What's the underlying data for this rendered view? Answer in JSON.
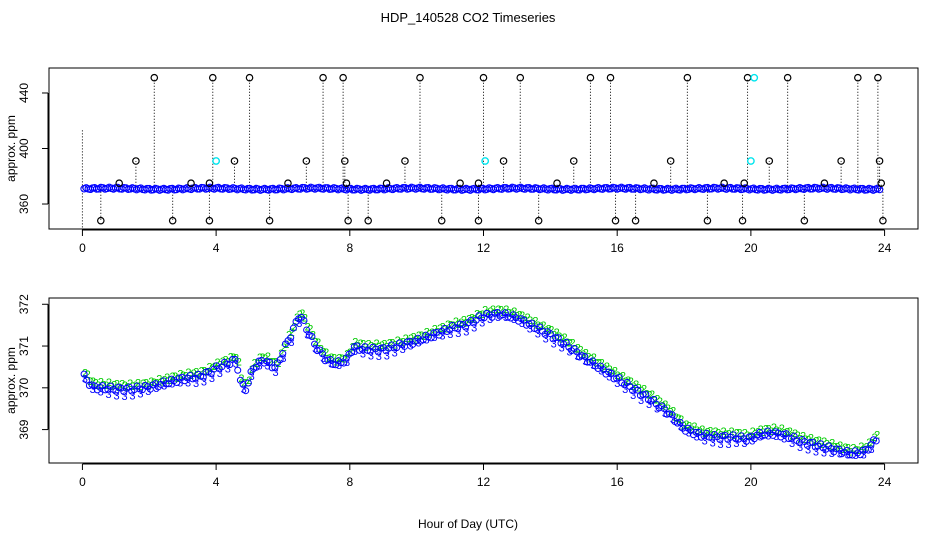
{
  "title": "HDP_140528  CO2 Timeseries",
  "xlabel": "Hour of Day (UTC)",
  "colors": {
    "background": "#ffffff",
    "axis": "#000000",
    "series_mean": "#0000ff",
    "series_outlier": "#000000",
    "series_flag": "#00e5ee",
    "series_2": "#00cc00",
    "series_3": "#0000ff"
  },
  "chart_data": [
    {
      "type": "scatter",
      "name": "top-panel",
      "ylabel": "approx. ppm",
      "xlim": [
        -1,
        25
      ],
      "ylim": [
        342,
        458
      ],
      "xticks": [
        0,
        4,
        8,
        12,
        16,
        20,
        24
      ],
      "xtick_labels": [
        "0",
        "4",
        "8",
        "12",
        "16",
        "20",
        "24"
      ],
      "yticks": [
        360,
        400,
        440
      ],
      "ytick_labels": [
        "360",
        "400",
        "440"
      ],
      "baseline_start": 0.05,
      "baseline_end": 23.85,
      "baseline_value": 371,
      "high_points": [
        {
          "x": 2.15,
          "y": 451
        },
        {
          "x": 3.9,
          "y": 451
        },
        {
          "x": 5.0,
          "y": 451
        },
        {
          "x": 7.2,
          "y": 451
        },
        {
          "x": 7.8,
          "y": 451
        },
        {
          "x": 10.1,
          "y": 451
        },
        {
          "x": 12.0,
          "y": 451
        },
        {
          "x": 13.1,
          "y": 451
        },
        {
          "x": 15.2,
          "y": 451
        },
        {
          "x": 15.8,
          "y": 451
        },
        {
          "x": 18.1,
          "y": 451
        },
        {
          "x": 19.9,
          "y": 451
        },
        {
          "x": 21.1,
          "y": 451
        },
        {
          "x": 23.2,
          "y": 451
        },
        {
          "x": 23.8,
          "y": 451
        }
      ],
      "mid_points": [
        {
          "x": 1.6,
          "y": 391
        },
        {
          "x": 4.55,
          "y": 391
        },
        {
          "x": 6.7,
          "y": 391
        },
        {
          "x": 7.85,
          "y": 391
        },
        {
          "x": 9.65,
          "y": 391
        },
        {
          "x": 12.6,
          "y": 391
        },
        {
          "x": 14.7,
          "y": 391
        },
        {
          "x": 17.6,
          "y": 391
        },
        {
          "x": 20.55,
          "y": 391
        },
        {
          "x": 22.7,
          "y": 391
        },
        {
          "x": 23.85,
          "y": 391
        }
      ],
      "near_points": [
        {
          "x": 1.1,
          "y": 375
        },
        {
          "x": 3.25,
          "y": 375
        },
        {
          "x": 3.8,
          "y": 375
        },
        {
          "x": 6.15,
          "y": 375
        },
        {
          "x": 7.9,
          "y": 375
        },
        {
          "x": 9.1,
          "y": 375
        },
        {
          "x": 11.3,
          "y": 375
        },
        {
          "x": 11.85,
          "y": 375
        },
        {
          "x": 14.2,
          "y": 375
        },
        {
          "x": 17.1,
          "y": 375
        },
        {
          "x": 19.2,
          "y": 375
        },
        {
          "x": 19.8,
          "y": 375
        },
        {
          "x": 22.2,
          "y": 375
        },
        {
          "x": 23.9,
          "y": 375
        }
      ],
      "low_points": [
        {
          "x": 0.55,
          "y": 348
        },
        {
          "x": 2.7,
          "y": 348
        },
        {
          "x": 3.8,
          "y": 348
        },
        {
          "x": 5.6,
          "y": 348
        },
        {
          "x": 7.95,
          "y": 348
        },
        {
          "x": 8.55,
          "y": 348
        },
        {
          "x": 10.75,
          "y": 348
        },
        {
          "x": 11.85,
          "y": 348
        },
        {
          "x": 13.65,
          "y": 348
        },
        {
          "x": 15.95,
          "y": 348
        },
        {
          "x": 16.55,
          "y": 348
        },
        {
          "x": 18.7,
          "y": 348
        },
        {
          "x": 19.75,
          "y": 348
        },
        {
          "x": 21.6,
          "y": 348
        },
        {
          "x": 23.95,
          "y": 348
        }
      ],
      "flag_points": [
        {
          "x": 4.0,
          "y": 391
        },
        {
          "x": 12.05,
          "y": 391
        },
        {
          "x": 20.0,
          "y": 391
        },
        {
          "x": 20.1,
          "y": 451
        }
      ],
      "dotted_lines": [
        {
          "x": 0.0,
          "y_from": 341,
          "y_to": 414
        }
      ]
    },
    {
      "type": "scatter",
      "name": "bottom-panel",
      "ylabel": "approx. ppm",
      "xlim": [
        -1,
        25
      ],
      "ylim": [
        368.2,
        372.15
      ],
      "xticks": [
        0,
        4,
        8,
        12,
        16,
        20,
        24
      ],
      "xtick_labels": [
        "0",
        "4",
        "8",
        "12",
        "16",
        "20",
        "24"
      ],
      "yticks": [
        369,
        370,
        371,
        372
      ],
      "ytick_labels": [
        "369",
        "370",
        "371",
        "372"
      ],
      "series": [
        {
          "name": "2",
          "marker": "2"
        },
        {
          "name": "3",
          "marker": "3"
        }
      ],
      "profile": [
        {
          "x": 0.05,
          "y": 370.3
        },
        {
          "x": 0.3,
          "y": 370.05
        },
        {
          "x": 1.0,
          "y": 370.0
        },
        {
          "x": 1.5,
          "y": 370.0
        },
        {
          "x": 2.0,
          "y": 370.05
        },
        {
          "x": 2.5,
          "y": 370.15
        },
        {
          "x": 3.0,
          "y": 370.25
        },
        {
          "x": 3.5,
          "y": 370.3
        },
        {
          "x": 3.8,
          "y": 370.4
        },
        {
          "x": 4.0,
          "y": 370.5
        },
        {
          "x": 4.3,
          "y": 370.6
        },
        {
          "x": 4.6,
          "y": 370.7
        },
        {
          "x": 4.75,
          "y": 370.1
        },
        {
          "x": 4.9,
          "y": 370.0
        },
        {
          "x": 5.1,
          "y": 370.5
        },
        {
          "x": 5.4,
          "y": 370.7
        },
        {
          "x": 5.8,
          "y": 370.5
        },
        {
          "x": 6.0,
          "y": 370.9
        },
        {
          "x": 6.3,
          "y": 371.4
        },
        {
          "x": 6.5,
          "y": 371.8
        },
        {
          "x": 6.8,
          "y": 371.3
        },
        {
          "x": 7.0,
          "y": 371.0
        },
        {
          "x": 7.3,
          "y": 370.7
        },
        {
          "x": 7.6,
          "y": 370.6
        },
        {
          "x": 7.9,
          "y": 370.7
        },
        {
          "x": 8.1,
          "y": 371.0
        },
        {
          "x": 8.5,
          "y": 370.95
        },
        {
          "x": 9.0,
          "y": 370.95
        },
        {
          "x": 9.5,
          "y": 371.05
        },
        {
          "x": 10.0,
          "y": 371.15
        },
        {
          "x": 10.5,
          "y": 371.3
        },
        {
          "x": 11.0,
          "y": 371.45
        },
        {
          "x": 11.5,
          "y": 371.55
        },
        {
          "x": 12.0,
          "y": 371.75
        },
        {
          "x": 12.5,
          "y": 371.8
        },
        {
          "x": 13.0,
          "y": 371.7
        },
        {
          "x": 13.5,
          "y": 371.5
        },
        {
          "x": 14.0,
          "y": 371.3
        },
        {
          "x": 14.5,
          "y": 371.05
        },
        {
          "x": 15.0,
          "y": 370.75
        },
        {
          "x": 15.5,
          "y": 370.5
        },
        {
          "x": 16.0,
          "y": 370.25
        },
        {
          "x": 16.5,
          "y": 370.0
        },
        {
          "x": 17.0,
          "y": 369.75
        },
        {
          "x": 17.5,
          "y": 369.45
        },
        {
          "x": 18.0,
          "y": 369.05
        },
        {
          "x": 18.5,
          "y": 368.9
        },
        {
          "x": 19.0,
          "y": 368.85
        },
        {
          "x": 19.5,
          "y": 368.85
        },
        {
          "x": 19.9,
          "y": 368.8
        },
        {
          "x": 20.2,
          "y": 368.9
        },
        {
          "x": 20.6,
          "y": 368.95
        },
        {
          "x": 21.0,
          "y": 368.9
        },
        {
          "x": 21.5,
          "y": 368.75
        },
        {
          "x": 22.0,
          "y": 368.65
        },
        {
          "x": 22.5,
          "y": 368.55
        },
        {
          "x": 23.0,
          "y": 368.45
        },
        {
          "x": 23.4,
          "y": 368.5
        },
        {
          "x": 23.75,
          "y": 368.8
        }
      ]
    }
  ]
}
